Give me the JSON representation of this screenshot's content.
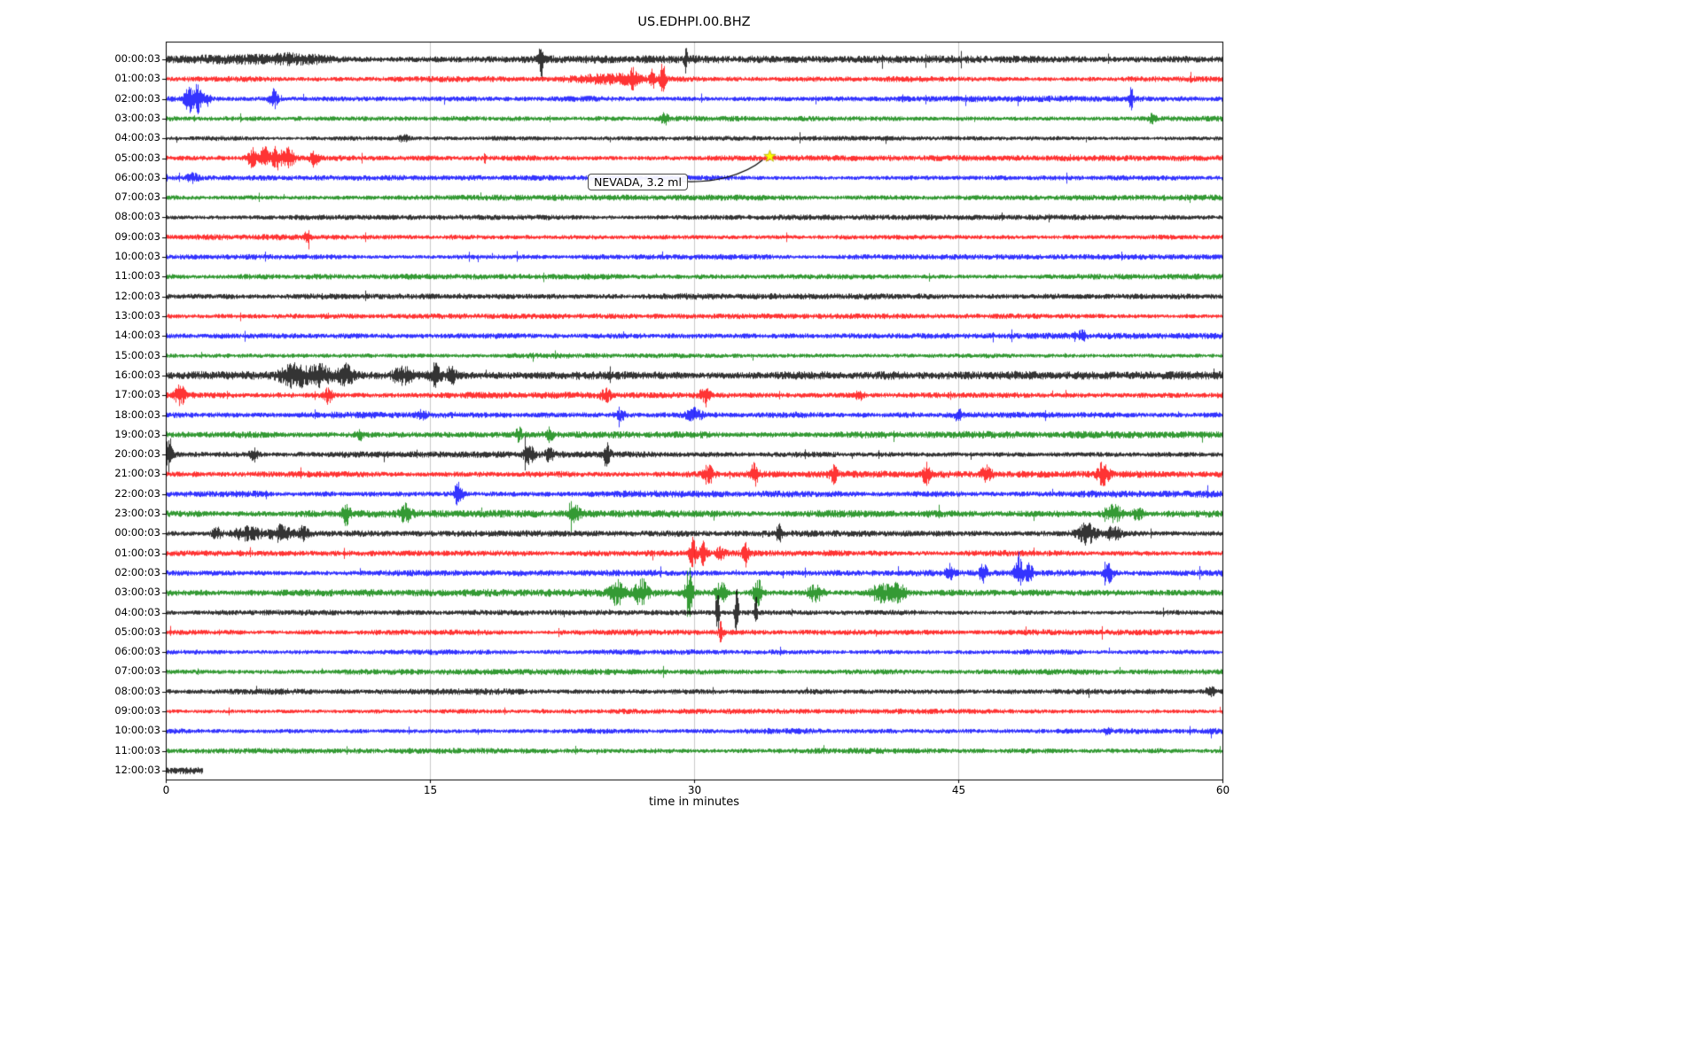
{
  "title": "US.EDHPI.00.BHZ",
  "chart_data": {
    "type": "line",
    "subtype": "helicorder-seismogram",
    "title": "US.EDHPI.00.BHZ",
    "xlabel": "time in minutes",
    "xlim": [
      0,
      60
    ],
    "x_ticks": [
      0,
      15,
      30,
      45,
      60
    ],
    "grid": "vertical-only",
    "trace_color_cycle": [
      "#000000",
      "#ff0000",
      "#0000ff",
      "#008000"
    ],
    "annotation": {
      "text": "NEVADA, 3.2 ml",
      "row": 5,
      "x_minutes": 34.3,
      "marker": "star",
      "marker_color": "#ffff00"
    },
    "rows": [
      {
        "label": "00:00:03",
        "color": "#000000",
        "amp": 1.6,
        "events": [
          {
            "t": 3,
            "a": 0.8,
            "w": 3
          },
          {
            "t": 7,
            "a": 0.6,
            "w": 2
          },
          {
            "t": 21.3,
            "a": 4.5,
            "w": 0.12
          },
          {
            "t": 29.5,
            "a": 3,
            "w": 0.1
          }
        ]
      },
      {
        "label": "01:00:03",
        "color": "#ff0000",
        "amp": 1.2,
        "events": [
          {
            "t": 25,
            "a": 1.2,
            "w": 2
          },
          {
            "t": 26.5,
            "a": 2.5,
            "w": 0.3
          },
          {
            "t": 27.6,
            "a": 3.5,
            "w": 0.12
          },
          {
            "t": 28.2,
            "a": 5,
            "w": 0.15
          }
        ]
      },
      {
        "label": "02:00:03",
        "color": "#0000ff",
        "amp": 1.3,
        "events": [
          {
            "t": 1.3,
            "a": 5,
            "w": 0.25
          },
          {
            "t": 1.8,
            "a": 6,
            "w": 0.2
          },
          {
            "t": 2.3,
            "a": 3,
            "w": 0.2
          },
          {
            "t": 6.1,
            "a": 4,
            "w": 0.25
          },
          {
            "t": 54.8,
            "a": 3.5,
            "w": 0.12
          }
        ]
      },
      {
        "label": "03:00:03",
        "color": "#008000",
        "amp": 1.2,
        "events": [
          {
            "t": 28.3,
            "a": 1.8,
            "w": 0.2
          },
          {
            "t": 56,
            "a": 1.5,
            "w": 0.2
          }
        ]
      },
      {
        "label": "04:00:03",
        "color": "#000000",
        "amp": 1.0,
        "events": [
          {
            "t": 13.5,
            "a": 1.2,
            "w": 0.3
          }
        ]
      },
      {
        "label": "05:00:03",
        "color": "#ff0000",
        "amp": 1.2,
        "events": [
          {
            "t": 4.9,
            "a": 4,
            "w": 0.3
          },
          {
            "t": 5.6,
            "a": 5.5,
            "w": 0.25
          },
          {
            "t": 6.3,
            "a": 5,
            "w": 0.3
          },
          {
            "t": 7,
            "a": 4,
            "w": 0.3
          },
          {
            "t": 8.4,
            "a": 3,
            "w": 0.2
          }
        ]
      },
      {
        "label": "06:00:03",
        "color": "#0000ff",
        "amp": 1.1,
        "events": [
          {
            "t": 1.5,
            "a": 1.5,
            "w": 0.3
          }
        ]
      },
      {
        "label": "07:00:03",
        "color": "#008000",
        "amp": 1.2,
        "events": []
      },
      {
        "label": "08:00:03",
        "color": "#000000",
        "amp": 1.1,
        "events": []
      },
      {
        "label": "09:00:03",
        "color": "#ff0000",
        "amp": 1.2,
        "events": [
          {
            "t": 8,
            "a": 1.3,
            "w": 0.2
          }
        ]
      },
      {
        "label": "10:00:03",
        "color": "#0000ff",
        "amp": 1.1,
        "events": []
      },
      {
        "label": "11:00:03",
        "color": "#008000",
        "amp": 1.2,
        "events": []
      },
      {
        "label": "12:00:03",
        "color": "#000000",
        "amp": 1.3,
        "events": []
      },
      {
        "label": "13:00:03",
        "color": "#ff0000",
        "amp": 1.1,
        "events": []
      },
      {
        "label": "14:00:03",
        "color": "#0000ff",
        "amp": 1.3,
        "events": [
          {
            "t": 52,
            "a": 1.5,
            "w": 0.2
          }
        ]
      },
      {
        "label": "15:00:03",
        "color": "#008000",
        "amp": 1.1,
        "events": []
      },
      {
        "label": "16:00:03",
        "color": "#000000",
        "amp": 1.7,
        "events": [
          {
            "t": 7.3,
            "a": 2.5,
            "w": 0.8
          },
          {
            "t": 8.8,
            "a": 2,
            "w": 0.6
          },
          {
            "t": 10.2,
            "a": 2,
            "w": 0.4
          },
          {
            "t": 13.4,
            "a": 2,
            "w": 0.5
          },
          {
            "t": 15.3,
            "a": 2.8,
            "w": 0.3
          },
          {
            "t": 16.2,
            "a": 2.2,
            "w": 0.25
          }
        ]
      },
      {
        "label": "17:00:03",
        "color": "#ff0000",
        "amp": 1.4,
        "events": [
          {
            "t": 0.8,
            "a": 2.5,
            "w": 0.3
          },
          {
            "t": 9.2,
            "a": 3,
            "w": 0.25
          },
          {
            "t": 25,
            "a": 1.5,
            "w": 0.3
          },
          {
            "t": 30.6,
            "a": 2.5,
            "w": 0.3
          },
          {
            "t": 39.4,
            "a": 2.2,
            "w": 0.2
          }
        ]
      },
      {
        "label": "18:00:03",
        "color": "#0000ff",
        "amp": 1.4,
        "events": [
          {
            "t": 14.5,
            "a": 1.5,
            "w": 0.3
          },
          {
            "t": 25.8,
            "a": 1.8,
            "w": 0.3
          },
          {
            "t": 30,
            "a": 2.2,
            "w": 0.4
          },
          {
            "t": 45,
            "a": 2,
            "w": 0.2
          }
        ]
      },
      {
        "label": "19:00:03",
        "color": "#008000",
        "amp": 1.5,
        "events": [
          {
            "t": 11,
            "a": 2,
            "w": 0.2
          },
          {
            "t": 20,
            "a": 2.2,
            "w": 0.2
          },
          {
            "t": 21.8,
            "a": 2.5,
            "w": 0.15
          }
        ]
      },
      {
        "label": "20:00:03",
        "color": "#000000",
        "amp": 1.3,
        "events": [
          {
            "t": 0.15,
            "a": 6,
            "w": 0.2
          },
          {
            "t": 5,
            "a": 2.5,
            "w": 0.25
          },
          {
            "t": 20.6,
            "a": 2.2,
            "w": 0.3
          },
          {
            "t": 21.8,
            "a": 2.5,
            "w": 0.2
          },
          {
            "t": 25,
            "a": 3.5,
            "w": 0.2
          }
        ]
      },
      {
        "label": "21:00:03",
        "color": "#ff0000",
        "amp": 1.4,
        "events": [
          {
            "t": 30.8,
            "a": 3.5,
            "w": 0.3
          },
          {
            "t": 33.4,
            "a": 3,
            "w": 0.25
          },
          {
            "t": 37.9,
            "a": 2,
            "w": 0.2
          },
          {
            "t": 43.2,
            "a": 2.8,
            "w": 0.25
          },
          {
            "t": 46.6,
            "a": 2.5,
            "w": 0.3
          },
          {
            "t": 53.2,
            "a": 3.2,
            "w": 0.3
          }
        ]
      },
      {
        "label": "22:00:03",
        "color": "#0000ff",
        "amp": 1.4,
        "events": [
          {
            "t": 16.6,
            "a": 3.5,
            "w": 0.25
          }
        ]
      },
      {
        "label": "23:00:03",
        "color": "#008000",
        "amp": 1.5,
        "events": [
          {
            "t": 10.2,
            "a": 2.8,
            "w": 0.25
          },
          {
            "t": 13.6,
            "a": 2.2,
            "w": 0.3
          },
          {
            "t": 23.2,
            "a": 2.2,
            "w": 0.3
          },
          {
            "t": 53.8,
            "a": 3,
            "w": 0.5
          },
          {
            "t": 55.2,
            "a": 2.2,
            "w": 0.3
          }
        ]
      },
      {
        "label": "00:00:03",
        "color": "#000000",
        "amp": 1.3,
        "events": [
          {
            "t": 2.9,
            "a": 2.2,
            "w": 0.25
          },
          {
            "t": 4.5,
            "a": 1.8,
            "w": 0.8
          },
          {
            "t": 6.5,
            "a": 2,
            "w": 0.6
          },
          {
            "t": 7.8,
            "a": 1.8,
            "w": 0.3
          },
          {
            "t": 34.8,
            "a": 2.8,
            "w": 0.15
          },
          {
            "t": 52.3,
            "a": 2.8,
            "w": 0.5
          },
          {
            "t": 53.8,
            "a": 2.2,
            "w": 0.4
          }
        ]
      },
      {
        "label": "01:00:03",
        "color": "#ff0000",
        "amp": 1.3,
        "events": [
          {
            "t": 29.9,
            "a": 4.5,
            "w": 0.2
          },
          {
            "t": 30.5,
            "a": 3.5,
            "w": 0.2
          },
          {
            "t": 31.5,
            "a": 2,
            "w": 0.2
          },
          {
            "t": 32.9,
            "a": 4,
            "w": 0.15
          }
        ]
      },
      {
        "label": "02:00:03",
        "color": "#0000ff",
        "amp": 1.3,
        "events": [
          {
            "t": 44.5,
            "a": 2,
            "w": 0.2
          },
          {
            "t": 46.4,
            "a": 2.5,
            "w": 0.2
          },
          {
            "t": 48.4,
            "a": 6,
            "w": 0.2
          },
          {
            "t": 49,
            "a": 3,
            "w": 0.2
          },
          {
            "t": 53.5,
            "a": 2.8,
            "w": 0.25
          }
        ]
      },
      {
        "label": "03:00:03",
        "color": "#008000",
        "amp": 1.5,
        "events": [
          {
            "t": 25.6,
            "a": 2.8,
            "w": 0.4
          },
          {
            "t": 27,
            "a": 3.2,
            "w": 0.4
          },
          {
            "t": 29.7,
            "a": 7,
            "w": 0.2
          },
          {
            "t": 31.5,
            "a": 4,
            "w": 0.3
          },
          {
            "t": 33.6,
            "a": 5,
            "w": 0.25
          },
          {
            "t": 36.9,
            "a": 3,
            "w": 0.4
          },
          {
            "t": 40.6,
            "a": 3.2,
            "w": 0.6
          },
          {
            "t": 41.6,
            "a": 2.8,
            "w": 0.4
          }
        ]
      },
      {
        "label": "04:00:03",
        "color": "#000000",
        "amp": 1.1,
        "events": [
          {
            "t": 31.3,
            "a": 9,
            "w": 0.1
          },
          {
            "t": 32.4,
            "a": 11,
            "w": 0.1
          },
          {
            "t": 33.5,
            "a": 8,
            "w": 0.08
          }
        ]
      },
      {
        "label": "05:00:03",
        "color": "#ff0000",
        "amp": 1.2,
        "events": [
          {
            "t": 31.5,
            "a": 3,
            "w": 0.12
          }
        ]
      },
      {
        "label": "06:00:03",
        "color": "#0000ff",
        "amp": 1.1,
        "events": []
      },
      {
        "label": "07:00:03",
        "color": "#008000",
        "amp": 1.2,
        "events": []
      },
      {
        "label": "08:00:03",
        "color": "#000000",
        "amp": 1.3,
        "events": [
          {
            "t": 59.3,
            "a": 1.8,
            "w": 0.3
          }
        ]
      },
      {
        "label": "09:00:03",
        "color": "#ff0000",
        "amp": 1.1,
        "events": []
      },
      {
        "label": "10:00:03",
        "color": "#0000ff",
        "amp": 1.2,
        "events": [
          {
            "t": 53.5,
            "a": 1.3,
            "w": 0.2
          }
        ]
      },
      {
        "label": "11:00:03",
        "color": "#008000",
        "amp": 1.2,
        "events": []
      },
      {
        "label": "12:00:03",
        "color": "#000000",
        "amp": 1.5,
        "coverage": 0.035,
        "events": []
      }
    ]
  }
}
